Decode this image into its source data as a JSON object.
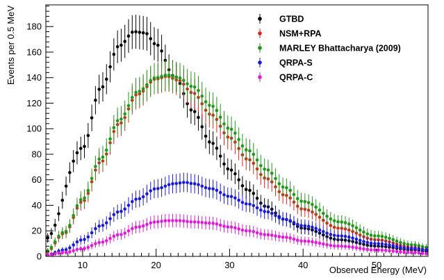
{
  "chart_data": {
    "type": "scatter",
    "title": "",
    "xlabel": "Observed Energy (MeV)",
    "ylabel": "Events per 0.5 MeV",
    "xlim": [
      5,
      57
    ],
    "ylim": [
      0,
      197
    ],
    "x_ticks": [
      10,
      20,
      30,
      40,
      50
    ],
    "y_ticks": [
      0,
      20,
      40,
      60,
      80,
      100,
      120,
      140,
      160,
      180
    ],
    "grid": false,
    "legend_position": "top-right",
    "error_bars": "sqrt(N)",
    "series": [
      {
        "name": "GTBD",
        "color": "#000000",
        "points": [
          [
            5,
            14
          ],
          [
            10,
            85
          ],
          [
            12.5,
            132
          ],
          [
            15,
            165
          ],
          [
            17,
            176
          ],
          [
            18.5,
            175
          ],
          [
            20,
            166
          ],
          [
            22.5,
            141
          ],
          [
            25,
            114
          ],
          [
            27.5,
            89
          ],
          [
            30,
            68
          ],
          [
            32.5,
            52
          ],
          [
            35,
            39
          ],
          [
            37.5,
            29
          ],
          [
            40,
            22
          ],
          [
            45,
            13
          ],
          [
            50,
            8
          ],
          [
            55,
            5
          ],
          [
            57,
            4
          ]
        ]
      },
      {
        "name": "NSM+RPA",
        "color": "#e8201a",
        "points": [
          [
            5,
            3
          ],
          [
            7.5,
            18
          ],
          [
            10,
            43
          ],
          [
            12.5,
            74
          ],
          [
            15,
            104
          ],
          [
            17.5,
            127
          ],
          [
            20,
            139
          ],
          [
            21.5,
            141
          ],
          [
            23,
            138
          ],
          [
            25,
            128
          ],
          [
            27.5,
            111
          ],
          [
            30,
            93
          ],
          [
            32.5,
            76
          ],
          [
            35,
            61
          ],
          [
            37.5,
            48
          ],
          [
            40,
            37
          ],
          [
            45,
            22
          ],
          [
            50,
            13
          ],
          [
            55,
            7
          ],
          [
            57,
            5
          ]
        ]
      },
      {
        "name": "MARLEY Bhattacharya (2009)",
        "color": "#1f9a18",
        "points": [
          [
            5,
            4
          ],
          [
            7.5,
            19
          ],
          [
            10,
            45
          ],
          [
            12.5,
            77
          ],
          [
            15,
            107
          ],
          [
            17.5,
            129
          ],
          [
            20,
            140
          ],
          [
            21.5,
            142
          ],
          [
            23,
            140
          ],
          [
            25,
            133
          ],
          [
            27.5,
            118
          ],
          [
            30,
            100
          ],
          [
            32.5,
            83
          ],
          [
            35,
            68
          ],
          [
            37.5,
            54
          ],
          [
            40,
            43
          ],
          [
            45,
            27
          ],
          [
            50,
            16
          ],
          [
            55,
            9
          ],
          [
            57,
            7
          ]
        ]
      },
      {
        "name": "QRPA-S",
        "color": "#1a1adc",
        "points": [
          [
            5,
            1
          ],
          [
            7.5,
            5
          ],
          [
            10,
            13
          ],
          [
            12.5,
            24
          ],
          [
            15,
            35
          ],
          [
            17.5,
            45
          ],
          [
            20,
            53
          ],
          [
            22.5,
            57
          ],
          [
            24,
            58
          ],
          [
            25,
            57
          ],
          [
            27.5,
            53
          ],
          [
            30,
            47
          ],
          [
            32.5,
            41
          ],
          [
            35,
            35
          ],
          [
            37.5,
            29
          ],
          [
            40,
            24
          ],
          [
            45,
            16
          ],
          [
            50,
            10
          ],
          [
            55,
            6
          ],
          [
            57,
            5
          ]
        ]
      },
      {
        "name": "QRPA-C",
        "color": "#e01ad8",
        "points": [
          [
            5,
            1
          ],
          [
            7.5,
            3
          ],
          [
            10,
            6
          ],
          [
            12.5,
            11
          ],
          [
            15,
            17
          ],
          [
            17.5,
            23
          ],
          [
            20,
            27
          ],
          [
            21.5,
            28
          ],
          [
            23,
            28
          ],
          [
            25,
            27
          ],
          [
            27.5,
            26
          ],
          [
            30,
            23
          ],
          [
            32.5,
            20
          ],
          [
            35,
            17
          ],
          [
            37.5,
            15
          ],
          [
            40,
            12
          ],
          [
            45,
            8
          ],
          [
            50,
            5
          ],
          [
            55,
            3
          ],
          [
            57,
            2
          ]
        ]
      }
    ]
  }
}
